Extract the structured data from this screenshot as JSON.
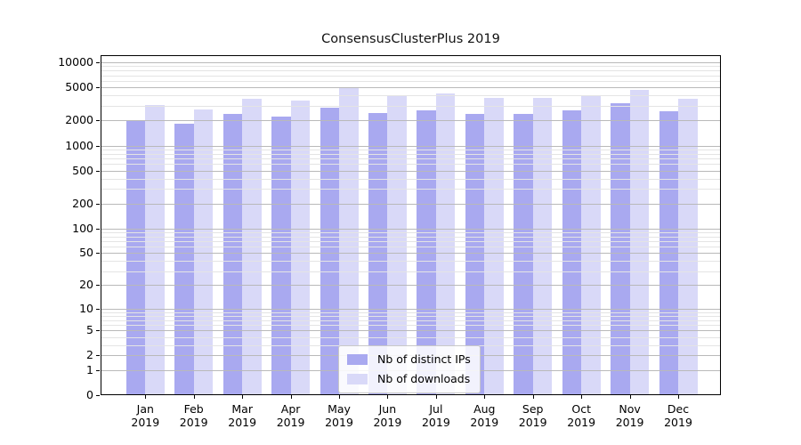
{
  "chart_data": {
    "type": "bar",
    "title": "ConsensusClusterPlus 2019",
    "categories": [
      "Jan 2019",
      "Feb 2019",
      "Mar 2019",
      "Apr 2019",
      "May 2019",
      "Jun 2019",
      "Jul 2019",
      "Aug 2019",
      "Sep 2019",
      "Oct 2019",
      "Nov 2019",
      "Dec 2019"
    ],
    "series": [
      {
        "name": "Nb of distinct IPs",
        "color": "#a9a9f0",
        "values": [
          1970,
          1820,
          2390,
          2220,
          2860,
          2450,
          2670,
          2400,
          2420,
          2650,
          3190,
          2570
        ]
      },
      {
        "name": "Nb of downloads",
        "color": "#d9d9f8",
        "values": [
          3060,
          2720,
          3630,
          3470,
          4900,
          4060,
          4270,
          3710,
          3740,
          4080,
          4700,
          3620
        ]
      }
    ],
    "xlabel": "",
    "ylabel": "",
    "yscale": "log10(1+y)",
    "ylim": [
      0,
      12200
    ],
    "yticks_labeled": [
      10000,
      5000,
      2000,
      1000,
      500,
      200,
      100,
      50,
      20,
      10,
      5,
      2,
      1,
      0
    ],
    "yticks_minor_mantissas": [
      3,
      4,
      6,
      7,
      8,
      9
    ],
    "grid": "horizontal major and minor gridlines, drawn over bars",
    "legend_position": "lower-center"
  },
  "style": {
    "background": "#ffffff",
    "grid_major": "#b9b9b9",
    "grid_minor": "#e4e4e4",
    "spine": "#000000",
    "text": "#000000"
  }
}
